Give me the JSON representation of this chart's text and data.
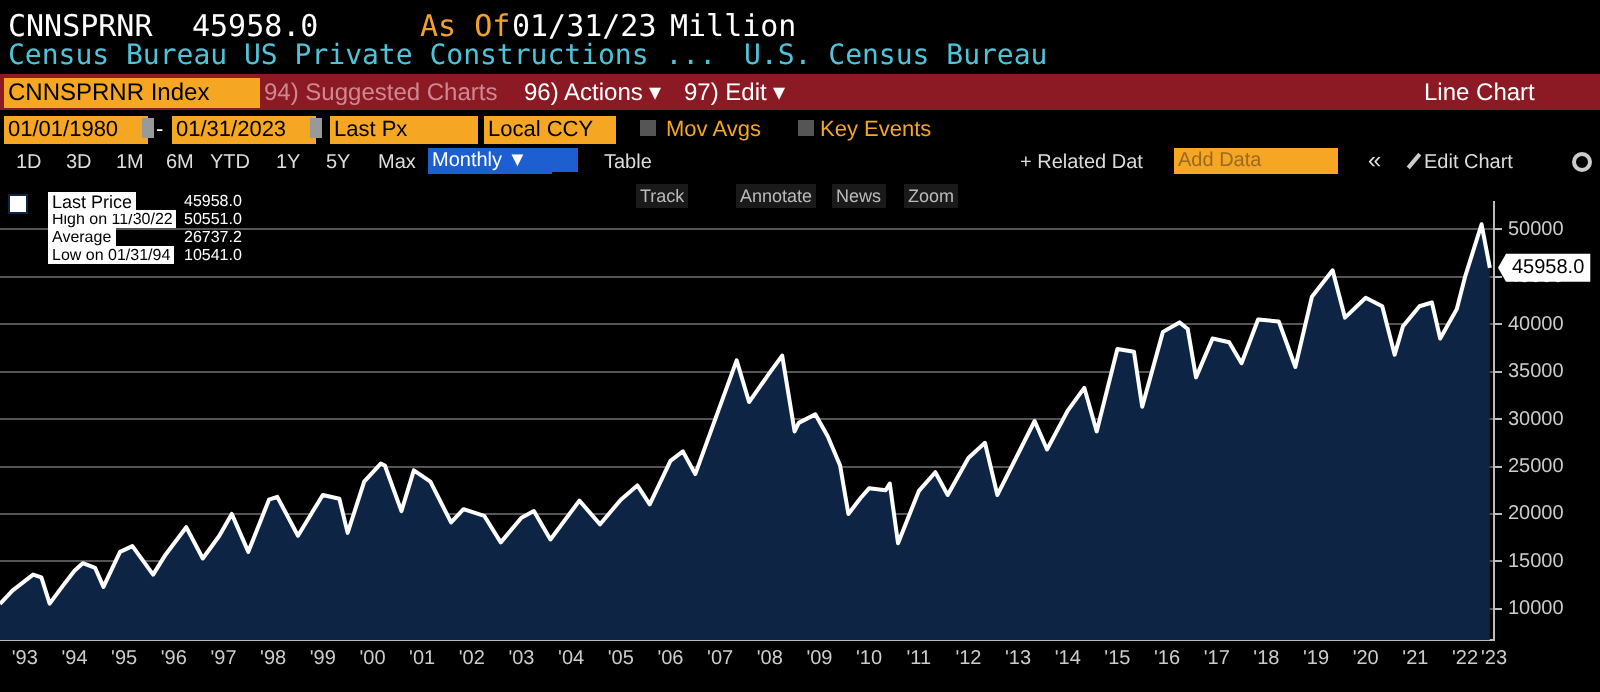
{
  "chart_data": {
    "type": "area",
    "title": "Census Bureau US Private Constructions ...",
    "subtitle": "U.S. Census Bureau",
    "annotations": [
      "CNNSPRNR",
      "45958.0",
      "As Of",
      "01/31/23",
      "Million",
      "CNNSPRNR Index",
      "94) Suggested Charts",
      "96) Actions ▾",
      "97) Edit ▾",
      "Line Chart",
      "01/01/1980",
      "-",
      "01/31/2023",
      "Last Px",
      "Local CCY",
      "Mov Avgs",
      "Key Events",
      "1D",
      "3D",
      "1M",
      "6M",
      "YTD",
      "1Y",
      "5Y",
      "Max",
      "Monthly ▼",
      "Table",
      "+ Related Dat",
      "Add Data",
      "«",
      "Edit Chart",
      "Track",
      "Annotate",
      "News",
      "Zoom",
      "45958.0",
      "High on 11/30/22",
      "50551.0",
      "Average",
      "26737.2",
      "Low on 01/31/94",
      "10541.0"
    ],
    "series": [
      {
        "name": "Last Price",
        "color": "#0e2444",
        "x": [
          "1993-01",
          "1993-04",
          "1993-09",
          "1993-11",
          "1994-01",
          "1994-04",
          "1994-07",
          "1994-09",
          "1994-12",
          "1995-02",
          "1995-06",
          "1995-09",
          "1996-02",
          "1996-05",
          "1996-10",
          "1997-02",
          "1997-06",
          "1997-09",
          "1998-01",
          "1998-06",
          "1998-08",
          "1999-01",
          "1999-07",
          "1999-11",
          "2000-01",
          "2000-05",
          "2000-09",
          "2000-10",
          "2001-02",
          "2001-05",
          "2001-09",
          "2002-02",
          "2002-05",
          "2002-10",
          "2003-02",
          "2003-07",
          "2003-10",
          "2004-02",
          "2004-09",
          "2005-02",
          "2005-07",
          "2005-11",
          "2006-02",
          "2006-07",
          "2006-10",
          "2007-01",
          "2007-07",
          "2007-11",
          "2008-02",
          "2008-07",
          "2008-10",
          "2009-01",
          "2009-02",
          "2009-06",
          "2009-09",
          "2009-12",
          "2010-02",
          "2010-05",
          "2010-07",
          "2010-11",
          "2010-12",
          "2011-02",
          "2011-07",
          "2011-11",
          "2012-02",
          "2012-07",
          "2012-11",
          "2013-02",
          "2013-11",
          "2014-02",
          "2014-07",
          "2014-11",
          "2015-02",
          "2015-07",
          "2015-11",
          "2016-01",
          "2016-06",
          "2016-10",
          "2016-12",
          "2017-02",
          "2017-06",
          "2017-10",
          "2018-01",
          "2018-05",
          "2018-10",
          "2019-02",
          "2019-06",
          "2019-11",
          "2020-02",
          "2020-07",
          "2020-11",
          "2021-02",
          "2021-04",
          "2021-08",
          "2021-11",
          "2022-01",
          "2022-05",
          "2022-07",
          "2022-11",
          "2023-01"
        ],
        "values": [
          10500,
          11900,
          13600,
          13300,
          10541,
          12300,
          14000,
          14800,
          14300,
          12300,
          16000,
          16600,
          13600,
          15700,
          18600,
          15300,
          17700,
          20000,
          16000,
          21500,
          21800,
          17700,
          22000,
          21600,
          18000,
          23400,
          25300,
          25100,
          20300,
          24600,
          23400,
          19100,
          20500,
          19800,
          17000,
          19600,
          20300,
          17300,
          21400,
          18900,
          21500,
          23000,
          21000,
          25600,
          26600,
          24200,
          31400,
          36200,
          31800,
          34900,
          36700,
          28700,
          29600,
          30500,
          28200,
          25100,
          20000,
          21700,
          22700,
          22500,
          23200,
          16900,
          22400,
          24400,
          22000,
          25900,
          27500,
          22000,
          29800,
          26800,
          30900,
          33300,
          28700,
          37400,
          37100,
          31300,
          39200,
          40200,
          39500,
          34400,
          38500,
          38100,
          35900,
          40500,
          40300,
          35500,
          42900,
          45700,
          40700,
          42800,
          41900,
          36800,
          39800,
          41900,
          42300,
          38500,
          41600,
          45000,
          50551,
          45958
        ],
        "value_labels": [
          null,
          null,
          null,
          null,
          null,
          null,
          null,
          null,
          null,
          null,
          null,
          null,
          null,
          null,
          null,
          null,
          null,
          null,
          null,
          null,
          null,
          null,
          null,
          null,
          null,
          null,
          null,
          null,
          null,
          null,
          null,
          null,
          null,
          null,
          null,
          null,
          null,
          null,
          null,
          null,
          null,
          null,
          null,
          null,
          null,
          null,
          null,
          null,
          null,
          null,
          null,
          null,
          null,
          null,
          null,
          null,
          null,
          null,
          null,
          null,
          null,
          null,
          null,
          null,
          null,
          null,
          null,
          null,
          null,
          null,
          null,
          null,
          null,
          null,
          null,
          null,
          null,
          null,
          null,
          null,
          null,
          null,
          null,
          null,
          null,
          null,
          null,
          null,
          null,
          null,
          null,
          null,
          null,
          null,
          null,
          null,
          null,
          null,
          null,
          "45958.0"
        ]
      }
    ],
    "xlim": [
      "1993-01",
      "2023-02"
    ],
    "xticks": [
      {
        "value": "1993-07",
        "label": "'93"
      },
      {
        "value": "1994-07",
        "label": "'94"
      },
      {
        "value": "1995-07",
        "label": "'95"
      },
      {
        "value": "1996-07",
        "label": "'96"
      },
      {
        "value": "1997-07",
        "label": "'97"
      },
      {
        "value": "1998-07",
        "label": "'98"
      },
      {
        "value": "1999-07",
        "label": "'99"
      },
      {
        "value": "2000-07",
        "label": "'00"
      },
      {
        "value": "2001-07",
        "label": "'01"
      },
      {
        "value": "2002-07",
        "label": "'02"
      },
      {
        "value": "2003-07",
        "label": "'03"
      },
      {
        "value": "2004-07",
        "label": "'04"
      },
      {
        "value": "2005-07",
        "label": "'05"
      },
      {
        "value": "2006-07",
        "label": "'06"
      },
      {
        "value": "2007-07",
        "label": "'07"
      },
      {
        "value": "2008-07",
        "label": "'08"
      },
      {
        "value": "2009-07",
        "label": "'09"
      },
      {
        "value": "2010-07",
        "label": "'10"
      },
      {
        "value": "2011-07",
        "label": "'11"
      },
      {
        "value": "2012-07",
        "label": "'12"
      },
      {
        "value": "2013-07",
        "label": "'13"
      },
      {
        "value": "2014-07",
        "label": "'14"
      },
      {
        "value": "2015-07",
        "label": "'15"
      },
      {
        "value": "2016-07",
        "label": "'16"
      },
      {
        "value": "2017-07",
        "label": "'17"
      },
      {
        "value": "2018-07",
        "label": "'18"
      },
      {
        "value": "2019-07",
        "label": "'19"
      },
      {
        "value": "2020-07",
        "label": "'20"
      },
      {
        "value": "2021-07",
        "label": "'21"
      },
      {
        "value": "2022-07",
        "label": "'22"
      },
      {
        "value": "2023-02",
        "label": "'23"
      }
    ],
    "ylim": [
      6700,
      52900
    ],
    "yticks": [
      10000,
      15000,
      20000,
      25000,
      30000,
      35000,
      40000,
      45000,
      50000
    ],
    "grid": "y",
    "legend": "top left"
  }
}
